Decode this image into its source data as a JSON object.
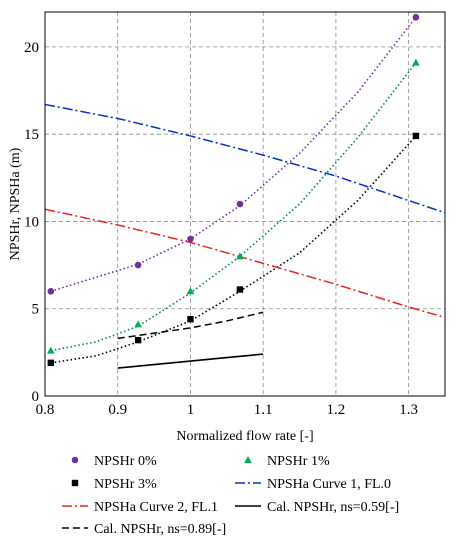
{
  "chart_data": {
    "type": "scatter",
    "xlabel": "Normalized flow rate [-]",
    "ylabel": "NPSHr, NPSHa (m)",
    "xlim": [
      0.8,
      1.35
    ],
    "ylim": [
      0,
      22
    ],
    "x_ticks": [
      "0.8",
      "0.9",
      "1",
      "1.1",
      "1.2",
      "1.3"
    ],
    "y_ticks": [
      "0",
      "5",
      "10",
      "15",
      "20"
    ],
    "grid": true,
    "legend_position": "bottom",
    "series": [
      {
        "name": "NPSHr 0%",
        "kind": "markers",
        "marker": "circle",
        "color": "#7030a0",
        "x": [
          0.808,
          0.928,
          1.0,
          1.068,
          1.31
        ],
        "y": [
          6.0,
          7.5,
          9.0,
          11.0,
          21.7
        ],
        "trend": {
          "style": "dotted",
          "x": [
            0.808,
            0.928,
            1.0,
            1.068,
            1.15,
            1.23,
            1.31
          ],
          "y": [
            6.0,
            7.55,
            9.0,
            10.9,
            13.9,
            17.4,
            21.7
          ]
        }
      },
      {
        "name": "NPSHr 1%",
        "kind": "markers",
        "marker": "triangle",
        "color": "#00b050",
        "x": [
          0.808,
          0.928,
          1.0,
          1.068,
          1.31
        ],
        "y": [
          2.6,
          4.1,
          6.0,
          8.0,
          19.1
        ],
        "trend": {
          "style": "dotted",
          "color": "#007f6e",
          "x": [
            0.808,
            0.87,
            0.928,
            1.0,
            1.068,
            1.15,
            1.23,
            1.31
          ],
          "y": [
            2.6,
            3.1,
            4.0,
            5.9,
            8.0,
            11.0,
            14.8,
            19.1
          ]
        }
      },
      {
        "name": "NPSHr 3%",
        "kind": "markers",
        "marker": "square",
        "color": "#000000",
        "x": [
          0.808,
          0.928,
          1.0,
          1.068,
          1.31
        ],
        "y": [
          1.9,
          3.2,
          4.4,
          6.1,
          14.9
        ],
        "trend": {
          "style": "dotted",
          "x": [
            0.808,
            0.87,
            0.928,
            1.0,
            1.068,
            1.15,
            1.23,
            1.31
          ],
          "y": [
            1.9,
            2.3,
            3.1,
            4.3,
            6.0,
            8.2,
            11.2,
            14.9
          ]
        }
      },
      {
        "name": "NPSHa Curve 1, FL.0",
        "kind": "line",
        "style": "dash-dot",
        "color": "#0033cc",
        "x": [
          0.8,
          0.9,
          1.0,
          1.1,
          1.2,
          1.3,
          1.35
        ],
        "y": [
          16.7,
          15.9,
          14.9,
          13.8,
          12.6,
          11.2,
          10.5
        ]
      },
      {
        "name": "NPSHa Curve 2, FL.1",
        "kind": "line",
        "style": "dash-dot",
        "color": "#e8261c",
        "x": [
          0.8,
          0.9,
          1.0,
          1.1,
          1.2,
          1.3,
          1.35
        ],
        "y": [
          10.7,
          9.8,
          8.8,
          7.6,
          6.4,
          5.1,
          4.5
        ]
      },
      {
        "name": "Cal. NPSHr, ns=0.59[-]",
        "kind": "line",
        "style": "solid",
        "color": "#000000",
        "x": [
          0.9,
          0.95,
          1.0,
          1.05,
          1.1
        ],
        "y": [
          1.6,
          1.8,
          2.0,
          2.2,
          2.4
        ]
      },
      {
        "name": "Cal. NPSHr, ns=0.89[-]",
        "kind": "line",
        "style": "dashed",
        "color": "#000000",
        "x": [
          0.9,
          0.95,
          1.0,
          1.05,
          1.1
        ],
        "y": [
          3.3,
          3.6,
          3.9,
          4.3,
          4.8
        ]
      }
    ]
  }
}
